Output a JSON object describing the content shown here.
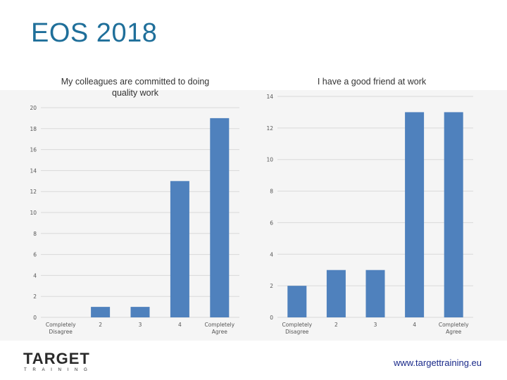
{
  "slide": {
    "title": "EOS 2018",
    "logo_text": "TARGET",
    "logo_subtext": "TRAINING",
    "url": "www.targettraining.eu"
  },
  "colors": {
    "bar": "#4f81bd",
    "grid": "#d9d9d9",
    "title": "#1f6f9a",
    "url": "#1a2a8a",
    "logo": "#2a2a2a"
  },
  "chart_data": [
    {
      "type": "bar",
      "title": "My colleagues are committed to doing quality work",
      "categories": [
        "Completely Disagree",
        "2",
        "3",
        "4",
        "Completely Agree"
      ],
      "values": [
        0,
        1,
        1,
        13,
        19
      ],
      "ylim": [
        0,
        20
      ],
      "yticks": [
        0,
        2,
        4,
        6,
        8,
        10,
        12,
        14,
        16,
        18,
        20
      ],
      "xlabel": "",
      "ylabel": ""
    },
    {
      "type": "bar",
      "title": "I have a good friend at work",
      "categories": [
        "Completely Disagree",
        "2",
        "3",
        "4",
        "Completely Agree"
      ],
      "values": [
        2,
        3,
        3,
        13,
        13
      ],
      "ylim": [
        0,
        14
      ],
      "yticks": [
        0,
        2,
        4,
        6,
        8,
        10,
        12,
        14
      ],
      "xlabel": "",
      "ylabel": ""
    }
  ]
}
